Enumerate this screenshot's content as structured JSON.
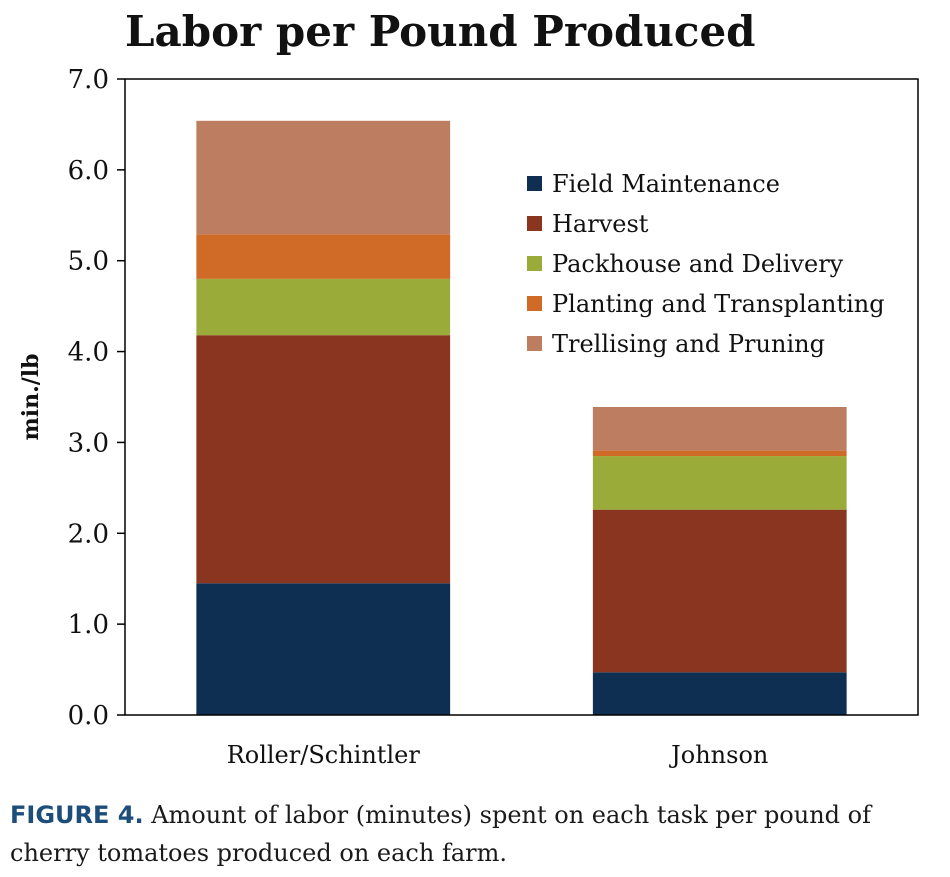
{
  "colors": {
    "Field Maintenance": "#0f2f52",
    "Harvest": "#8a351f",
    "Packhouse and Delivery": "#9aab3a",
    "Planting and Transplanting": "#cf6b27",
    "Trellising and Pruning": "#bc7d61",
    "caption_label": "#1d4d79"
  },
  "chart_data": {
    "type": "bar",
    "stacked": true,
    "title": "Labor per Pound Produced",
    "xlabel": "",
    "ylabel": "min./lb",
    "ylim": [
      0,
      7
    ],
    "yticks": [
      "0.0",
      "1.0",
      "2.0",
      "3.0",
      "4.0",
      "5.0",
      "6.0",
      "7.0"
    ],
    "categories": [
      "Roller/Schintler",
      "Johnson"
    ],
    "series": [
      {
        "name": "Field Maintenance",
        "values": [
          1.45,
          0.47
        ]
      },
      {
        "name": "Harvest",
        "values": [
          2.73,
          1.79
        ]
      },
      {
        "name": "Packhouse and Delivery",
        "values": [
          0.62,
          0.59
        ]
      },
      {
        "name": "Planting and Transplanting",
        "values": [
          0.49,
          0.06
        ]
      },
      {
        "name": "Trellising and Pruning",
        "values": [
          1.25,
          0.48
        ]
      }
    ],
    "legend_position": "top-right",
    "grid": false
  },
  "caption": {
    "label": "FIGURE 4.",
    "text": " Amount of labor (minutes) spent on each task per pound of cherry tomatoes produced on each farm."
  }
}
